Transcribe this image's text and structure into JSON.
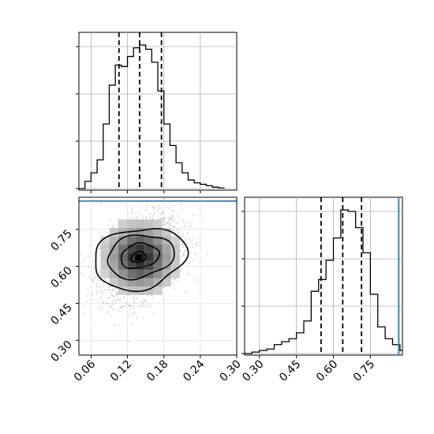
{
  "chart_data": [
    {
      "panel": "marginal-x",
      "type": "histogram",
      "xlim": [
        0.04,
        0.3
      ],
      "bins": [
        [
          0.04,
          0.05,
          0.0
        ],
        [
          0.05,
          0.06,
          0.05
        ],
        [
          0.06,
          0.07,
          0.11
        ],
        [
          0.07,
          0.08,
          0.2
        ],
        [
          0.08,
          0.09,
          0.45
        ],
        [
          0.09,
          0.1,
          0.72
        ],
        [
          0.1,
          0.11,
          0.86
        ],
        [
          0.11,
          0.12,
          0.85
        ],
        [
          0.12,
          0.13,
          0.92
        ],
        [
          0.13,
          0.14,
          0.98
        ],
        [
          0.14,
          0.15,
          1.0
        ],
        [
          0.15,
          0.16,
          0.97
        ],
        [
          0.16,
          0.17,
          0.88
        ],
        [
          0.17,
          0.18,
          0.68
        ],
        [
          0.18,
          0.19,
          0.45
        ],
        [
          0.19,
          0.2,
          0.3
        ],
        [
          0.2,
          0.21,
          0.18
        ],
        [
          0.21,
          0.22,
          0.11
        ],
        [
          0.22,
          0.23,
          0.06
        ],
        [
          0.23,
          0.24,
          0.04
        ],
        [
          0.24,
          0.25,
          0.03
        ],
        [
          0.25,
          0.26,
          0.02
        ],
        [
          0.26,
          0.27,
          0.01
        ],
        [
          0.27,
          0.28,
          0.005
        ]
      ],
      "quantiles": [
        0.106,
        0.14,
        0.176
      ],
      "yticks_count": 4
    },
    {
      "panel": "joint",
      "type": "2d-density",
      "xlim": [
        0.04,
        0.3
      ],
      "ylim": [
        0.24,
        0.88
      ],
      "peak": [
        0.138,
        0.635
      ],
      "truth_y": 0.865,
      "contour_levels": [
        {
          "cx": 0.14,
          "cy": 0.632,
          "rx": 0.075,
          "ry": 0.125
        },
        {
          "cx": 0.141,
          "cy": 0.64,
          "rx": 0.054,
          "ry": 0.088
        },
        {
          "cx": 0.14,
          "cy": 0.642,
          "rx": 0.031,
          "ry": 0.05
        },
        {
          "cx": 0.138,
          "cy": 0.637,
          "rx": 0.012,
          "ry": 0.022
        }
      ]
    },
    {
      "panel": "marginal-y",
      "type": "histogram",
      "xlim": [
        0.24,
        0.88
      ],
      "bins": [
        [
          0.24,
          0.27,
          0.0
        ],
        [
          0.27,
          0.3,
          0.01
        ],
        [
          0.3,
          0.33,
          0.02
        ],
        [
          0.33,
          0.36,
          0.03
        ],
        [
          0.36,
          0.39,
          0.06
        ],
        [
          0.39,
          0.42,
          0.08
        ],
        [
          0.42,
          0.45,
          0.1
        ],
        [
          0.45,
          0.48,
          0.14
        ],
        [
          0.48,
          0.51,
          0.22
        ],
        [
          0.51,
          0.54,
          0.42
        ],
        [
          0.54,
          0.57,
          0.5
        ],
        [
          0.57,
          0.6,
          0.63
        ],
        [
          0.6,
          0.63,
          0.78
        ],
        [
          0.63,
          0.66,
          0.97
        ],
        [
          0.66,
          0.69,
          0.96
        ],
        [
          0.69,
          0.72,
          0.85
        ],
        [
          0.72,
          0.75,
          0.68
        ],
        [
          0.75,
          0.78,
          0.4
        ],
        [
          0.78,
          0.81,
          0.18
        ],
        [
          0.81,
          0.84,
          0.1
        ],
        [
          0.84,
          0.87,
          0.06
        ],
        [
          0.87,
          0.88,
          0.02
        ]
      ],
      "quantiles": [
        0.55,
        0.638,
        0.714
      ],
      "truth_x": 0.865,
      "yticks_count": 4
    }
  ],
  "axes": {
    "x_ticks": [
      "0.06",
      "0.12",
      "0.18",
      "0.24",
      "0.30"
    ],
    "y_ticks": [
      "0.75",
      "0.60",
      "0.45",
      "0.30"
    ],
    "xy_ticks": [
      "0.30",
      "0.45",
      "0.60",
      "0.75"
    ]
  },
  "colors": {
    "hist_line": "#000000",
    "quantile_line": "#000000",
    "truth_line": "#4682b4",
    "grid": "#b0b0b0",
    "points": "#cfcfcf"
  }
}
